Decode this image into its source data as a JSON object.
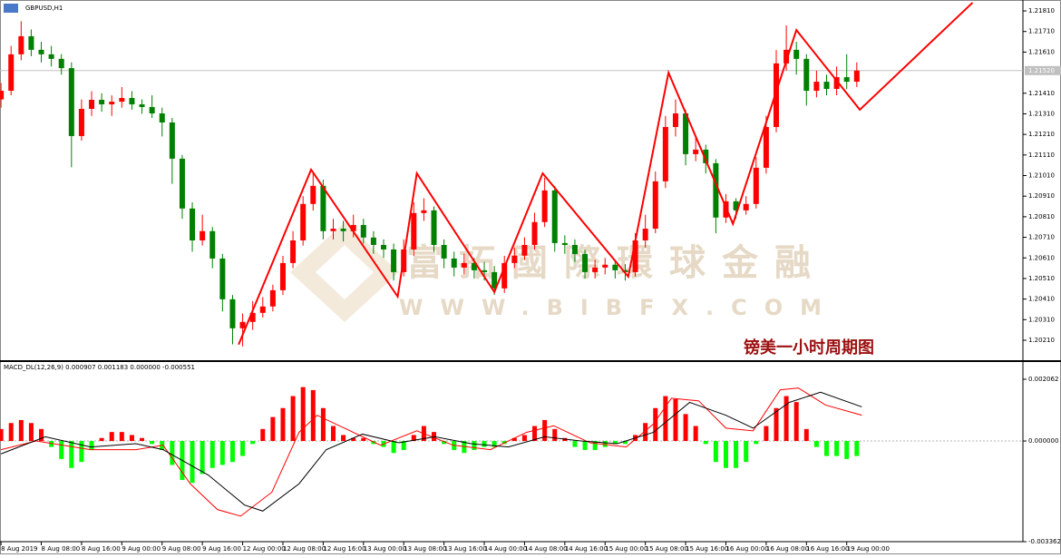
{
  "chart_data": {
    "type": "candlestick",
    "title": "GBPUSD,H1",
    "annotation": "镑美一小时周期图",
    "watermark": [
      "富拓國際環球金融",
      "WWW.BIBFX.COM"
    ],
    "xlim": [
      -0.1,
      101.5
    ],
    "xticks": [
      {
        "value": 0,
        "label": "8 Aug 2019"
      },
      {
        "value": 4,
        "label": "8 Aug 08:00"
      },
      {
        "value": 8,
        "label": "8 Aug 16:00"
      },
      {
        "value": 12,
        "label": "9 Aug 00:00"
      },
      {
        "value": 16,
        "label": "9 Aug 08:00"
      },
      {
        "value": 20,
        "label": "9 Aug 16:00"
      },
      {
        "value": 24,
        "label": "12 Aug 00:00"
      },
      {
        "value": 28,
        "label": "12 Aug 08:00"
      },
      {
        "value": 32,
        "label": "12 Aug 16:00"
      },
      {
        "value": 36,
        "label": "13 Aug 00:00"
      },
      {
        "value": 40,
        "label": "13 Aug 08:00"
      },
      {
        "value": 44,
        "label": "13 Aug 16:00"
      },
      {
        "value": 48,
        "label": "14 Aug 00:00"
      },
      {
        "value": 52,
        "label": "14 Aug 08:00"
      },
      {
        "value": 56,
        "label": "14 Aug 16:00"
      },
      {
        "value": 60,
        "label": "15 Aug 00:00"
      },
      {
        "value": 64,
        "label": "15 Aug 08:00"
      },
      {
        "value": 68,
        "label": "15 Aug 16:00"
      },
      {
        "value": 72,
        "label": "16 Aug 00:00"
      },
      {
        "value": 76,
        "label": "16 Aug 08:00"
      },
      {
        "value": 80,
        "label": "16 Aug 16:00"
      },
      {
        "value": 84,
        "label": "19 Aug 00:00"
      }
    ],
    "ylim": [
      1.20113,
      1.21863
    ],
    "yticks": [
      {
        "value": 1.2181,
        "label": "1.21810"
      },
      {
        "value": 1.2171,
        "label": "1.21710"
      },
      {
        "value": 1.2161,
        "label": "1.21610"
      },
      {
        "value": 1.2141,
        "label": "1.21410"
      },
      {
        "value": 1.2131,
        "label": "1.21310"
      },
      {
        "value": 1.2121,
        "label": "1.21210"
      },
      {
        "value": 1.2111,
        "label": "1.21110"
      },
      {
        "value": 1.2101,
        "label": "1.21010"
      },
      {
        "value": 1.2091,
        "label": "1.20910"
      },
      {
        "value": 1.2081,
        "label": "1.20810"
      },
      {
        "value": 1.2071,
        "label": "1.20710"
      },
      {
        "value": 1.2061,
        "label": "1.20610"
      },
      {
        "value": 1.2051,
        "label": "1.20510"
      },
      {
        "value": 1.2041,
        "label": "1.20410"
      },
      {
        "value": 1.2031,
        "label": "1.20310"
      },
      {
        "value": 1.2021,
        "label": "1.20210"
      }
    ],
    "current_price": {
      "value": 1.2152,
      "label": "1.21520"
    },
    "up_color": "#ff0000",
    "down_color": "#008000",
    "candles": [
      [
        1.2138,
        1.2146,
        1.2134,
        1.21422
      ],
      [
        1.21422,
        1.2164,
        1.214,
        1.21599
      ],
      [
        1.21599,
        1.2176,
        1.2157,
        1.21687
      ],
      [
        1.21687,
        1.2172,
        1.2159,
        1.21621
      ],
      [
        1.21621,
        1.2166,
        1.2156,
        1.21599
      ],
      [
        1.21599,
        1.2164,
        1.2154,
        1.21577
      ],
      [
        1.21577,
        1.216,
        1.215,
        1.21532
      ],
      [
        1.21532,
        1.2156,
        1.2105,
        1.21202
      ],
      [
        1.21202,
        1.2138,
        1.2118,
        1.21334
      ],
      [
        1.21334,
        1.2142,
        1.213,
        1.21378
      ],
      [
        1.21378,
        1.2141,
        1.2132,
        1.21356
      ],
      [
        1.21356,
        1.214,
        1.213,
        1.21369
      ],
      [
        1.21369,
        1.2144,
        1.2134,
        1.21387
      ],
      [
        1.21387,
        1.2142,
        1.2133,
        1.21356
      ],
      [
        1.21356,
        1.2138,
        1.2131,
        1.21343
      ],
      [
        1.21343,
        1.214,
        1.2129,
        1.21312
      ],
      [
        1.21312,
        1.2134,
        1.212,
        1.21268
      ],
      [
        1.21268,
        1.2129,
        1.2097,
        1.21092
      ],
      [
        1.21092,
        1.2111,
        1.208,
        1.2085
      ],
      [
        1.2085,
        1.2088,
        1.2064,
        1.20695
      ],
      [
        1.20695,
        1.2082,
        1.2067,
        1.2074
      ],
      [
        1.2074,
        1.2076,
        1.2056,
        1.20607
      ],
      [
        1.20607,
        1.2063,
        1.2035,
        1.20409
      ],
      [
        1.20409,
        1.2043,
        1.2019,
        1.20268
      ],
      [
        1.20268,
        1.2034,
        1.2018,
        1.20299
      ],
      [
        1.20299,
        1.204,
        1.2026,
        1.20343
      ],
      [
        1.20343,
        1.2042,
        1.2032,
        1.20374
      ],
      [
        1.20374,
        1.2048,
        1.2035,
        1.20453
      ],
      [
        1.20453,
        1.2062,
        1.2043,
        1.20585
      ],
      [
        1.20585,
        1.2074,
        1.2056,
        1.20695
      ],
      [
        1.20695,
        1.2091,
        1.2067,
        1.20872
      ],
      [
        1.20872,
        1.2102,
        1.2084,
        1.2096
      ],
      [
        1.2096,
        1.2099,
        1.207,
        1.2074
      ],
      [
        1.2074,
        1.208,
        1.207,
        1.20752
      ],
      [
        1.20752,
        1.2079,
        1.2069,
        1.2074
      ],
      [
        1.2074,
        1.2082,
        1.2071,
        1.2077
      ],
      [
        1.2077,
        1.208,
        1.2068,
        1.20709
      ],
      [
        1.20709,
        1.2074,
        1.2063,
        1.20673
      ],
      [
        1.20673,
        1.207,
        1.2061,
        1.20651
      ],
      [
        1.20651,
        1.2068,
        1.205,
        1.20541
      ],
      [
        1.20541,
        1.207,
        1.2052,
        1.20651
      ],
      [
        1.20651,
        1.2088,
        1.2062,
        1.20828
      ],
      [
        1.20828,
        1.209,
        1.2079,
        1.20841
      ],
      [
        1.20841,
        1.2086,
        1.2064,
        1.20673
      ],
      [
        1.20673,
        1.207,
        1.2056,
        1.20607
      ],
      [
        1.20607,
        1.2064,
        1.2052,
        1.20563
      ],
      [
        1.20563,
        1.2063,
        1.2053,
        1.20585
      ],
      [
        1.20585,
        1.2061,
        1.2051,
        1.2055
      ],
      [
        1.2055,
        1.2059,
        1.205,
        1.20541
      ],
      [
        1.20541,
        1.2057,
        1.2043,
        1.20462
      ],
      [
        1.20462,
        1.2062,
        1.2044,
        1.20585
      ],
      [
        1.20585,
        1.2066,
        1.2056,
        1.20621
      ],
      [
        1.20621,
        1.2071,
        1.206,
        1.20673
      ],
      [
        1.20673,
        1.2083,
        1.2065,
        1.20784
      ],
      [
        1.20784,
        1.21,
        1.2076,
        1.20938
      ],
      [
        1.20938,
        1.2096,
        1.2064,
        1.20682
      ],
      [
        1.20682,
        1.2072,
        1.2063,
        1.20673
      ],
      [
        1.20673,
        1.207,
        1.2059,
        1.20629
      ],
      [
        1.20629,
        1.2065,
        1.2051,
        1.20541
      ],
      [
        1.20541,
        1.206,
        1.2051,
        1.20563
      ],
      [
        1.20563,
        1.2061,
        1.2053,
        1.20577
      ],
      [
        1.20577,
        1.206,
        1.2051,
        1.2055
      ],
      [
        1.2055,
        1.2058,
        1.205,
        1.20541
      ],
      [
        1.20541,
        1.2073,
        1.2052,
        1.20695
      ],
      [
        1.20695,
        1.2082,
        1.2066,
        1.20752
      ],
      [
        1.20752,
        1.2103,
        1.2073,
        1.20982
      ],
      [
        1.20982,
        1.213,
        1.2095,
        1.21246
      ],
      [
        1.21246,
        1.2138,
        1.212,
        1.21312
      ],
      [
        1.21312,
        1.2133,
        1.2106,
        1.21114
      ],
      [
        1.21114,
        1.212,
        1.2108,
        1.21136
      ],
      [
        1.21136,
        1.2116,
        1.2102,
        1.2107
      ],
      [
        1.2107,
        1.2109,
        1.2073,
        1.20806
      ],
      [
        1.20806,
        1.2092,
        1.2078,
        1.20885
      ],
      [
        1.20885,
        1.209,
        1.208,
        1.20841
      ],
      [
        1.20841,
        1.2091,
        1.2082,
        1.20872
      ],
      [
        1.20872,
        1.211,
        1.2085,
        1.21048
      ],
      [
        1.21048,
        1.213,
        1.2102,
        1.21246
      ],
      [
        1.21246,
        1.2162,
        1.2122,
        1.21555
      ],
      [
        1.21555,
        1.2174,
        1.2152,
        1.21621
      ],
      [
        1.21621,
        1.2166,
        1.215,
        1.21577
      ],
      [
        1.21577,
        1.216,
        1.2135,
        1.21422
      ],
      [
        1.21422,
        1.2152,
        1.2139,
        1.21466
      ],
      [
        1.21466,
        1.215,
        1.214,
        1.21431
      ],
      [
        1.21431,
        1.2154,
        1.214,
        1.21488
      ],
      [
        1.21488,
        1.216,
        1.2143,
        1.21466
      ],
      [
        1.21466,
        1.2156,
        1.2144,
        1.2152
      ]
    ],
    "zigzag": {
      "color": "#ff0000",
      "x": [
        23.6,
        30.8,
        39.4,
        41.3,
        49.0,
        53.8,
        62.3,
        66.3,
        72.7,
        79.0,
        85.3,
        96.5
      ],
      "values": [
        1.20189,
        1.21039,
        1.20422,
        1.21021,
        1.20444,
        1.21021,
        1.20519,
        1.2151,
        1.20775,
        1.21717,
        1.2133,
        1.2185
      ]
    },
    "macd": {
      "label": "MACD_DL(12,26,9) 0.000907 0.001183 0.000000 -0.000551",
      "ylim": [
        -0.003362,
        0.002062
      ],
      "yticks": [
        0.002062,
        {
          "value": 0,
          "label": "0.000000"
        },
        -0.003362
      ],
      "up_color": "#ff0000",
      "down_color": "#00ff00",
      "histogram": [
        0.0004,
        0.0006,
        0.0007,
        0.0006,
        0.0004,
        -0.0002,
        -0.0006,
        -0.0009,
        -0.0007,
        -0.0003,
        0.0001,
        0.0003,
        0.0003,
        0.0002,
        0.0001,
        -0.0001,
        -0.0003,
        -0.0008,
        -0.0013,
        -0.0014,
        -0.0011,
        -0.0009,
        -0.0008,
        -0.0007,
        -0.0005,
        -0.0001,
        0.0004,
        0.0008,
        0.0011,
        0.0015,
        0.0018,
        0.0017,
        0.0011,
        0.0005,
        0.0002,
        0.0001,
        0.0001,
        -0.0001,
        -0.0002,
        -0.0004,
        -0.0003,
        0.0002,
        0.0005,
        0.0003,
        -0.0001,
        -0.0003,
        -0.0004,
        -0.0003,
        -0.0002,
        -0.0002,
        -0.0001,
        0.0001,
        0.0002,
        0.0005,
        0.0007,
        0.0004,
        0.0001,
        -0.0002,
        -0.0003,
        -0.0003,
        -0.0002,
        -0.0001,
        -0.0001,
        0.0002,
        0.0006,
        0.0011,
        0.0015,
        0.0014,
        0.0009,
        0.0005,
        -0.0001,
        -0.0007,
        -0.0009,
        -0.0009,
        -0.0007,
        -0.0001,
        0.0005,
        0.0011,
        0.0015,
        0.0013,
        0.0004,
        -0.0002,
        -0.0005,
        -0.0005,
        -0.0006,
        -0.0005
      ],
      "main": {
        "color": "#000000",
        "x": [
          0,
          4.4,
          8.9,
          13.4,
          16.1,
          20.6,
          24.2,
          26.0,
          29.6,
          32.3,
          35.9,
          39.5,
          43.1,
          46.7,
          50.4,
          54.0,
          57.6,
          61.2,
          64.8,
          68.4,
          72.0,
          74.7,
          78.3,
          81.4,
          85.5
        ],
        "values": [
          -0.00043,
          0.00014,
          -0.0002,
          -9e-05,
          -0.00029,
          -0.00114,
          -0.00214,
          -0.00234,
          -0.00143,
          -0.00029,
          0.00023,
          -6e-05,
          0.00014,
          -9e-05,
          -0.0002,
          0.00014,
          0,
          -9e-05,
          0.00029,
          0.00129,
          0.00086,
          0.00043,
          0.00129,
          0.00163,
          0.00114
        ]
      },
      "signal": {
        "color": "#ff0000",
        "x": [
          0,
          3.5,
          8.9,
          13.4,
          16.1,
          18.8,
          21.5,
          23.8,
          26.9,
          29.6,
          31.4,
          34.1,
          37.7,
          41.3,
          44.9,
          48.6,
          52.2,
          54.9,
          58.5,
          62.1,
          64.8,
          66.6,
          69.3,
          72.0,
          74.7,
          77.4,
          79.2,
          81.9,
          85.5
        ],
        "values": [
          -0.00029,
          0,
          -0.00029,
          -0.00029,
          -0.00014,
          -0.00143,
          -0.00229,
          -0.00251,
          -0.00171,
          0.00029,
          0.00086,
          0.00043,
          -0.00014,
          0.00034,
          -0.00014,
          -0.00029,
          0.00029,
          0.00051,
          -6e-05,
          -0.0002,
          0.00057,
          0.00143,
          0.00134,
          0.00043,
          0.00034,
          0.00171,
          0.00177,
          0.0012,
          0.00086
        ]
      }
    }
  }
}
